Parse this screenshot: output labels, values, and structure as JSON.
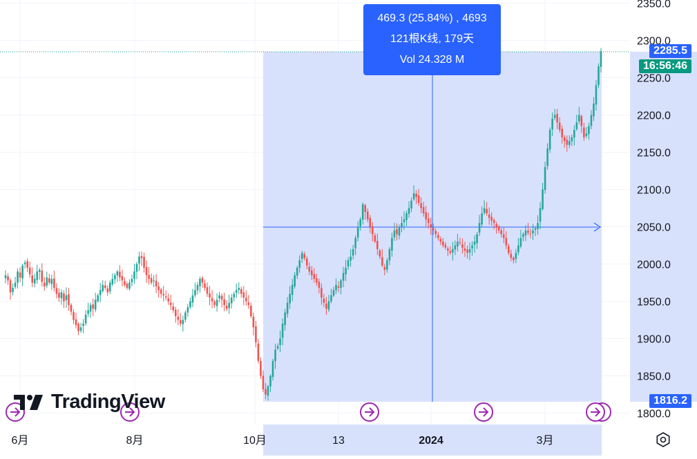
{
  "tooltip": {
    "line1": "469.3 (25.84%) , 4693",
    "line2": "121根K线, 179天",
    "line3": "Vol 24.328 M"
  },
  "price_tags": {
    "last_price": "2285.5",
    "countdown": "16:56:46",
    "range_start": "1816.2"
  },
  "logo": {
    "text": "TradingView"
  },
  "colors": {
    "up": "#26a69a",
    "down": "#ef5350",
    "range_fill": "#d1dcfb",
    "accent": "#2962ff",
    "marker": "#9c27b0",
    "last_price_tag": "#2962ff",
    "countdown_tag": "#089981"
  },
  "icons": [
    "replay-arrow-icon",
    "settings-gear-icon",
    "tradingview-logo-icon"
  ],
  "chart_data": {
    "type": "candlestick",
    "title": "",
    "y_axis": {
      "ticks": [
        "1800.0",
        "1850.0",
        "1900.0",
        "1950.0",
        "2000.0",
        "2050.0",
        "2100.0",
        "2150.0",
        "2200.0",
        "2250.0",
        "2300.0",
        "2350.0"
      ],
      "range": [
        1795,
        2355
      ],
      "position": "right"
    },
    "x_axis": {
      "ticks": [
        "6月",
        "8月",
        "10月",
        "13",
        "2024",
        "3月"
      ]
    },
    "grid": true,
    "crosshair_price": 2050,
    "measurement_range": {
      "start_price": 1816.2,
      "end_price": 2285.5,
      "bars": 121,
      "days": 179
    },
    "close_series": [
      1985,
      1978,
      1962,
      1968,
      1975,
      1990,
      1982,
      1998,
      2002,
      1995,
      1986,
      1975,
      1980,
      1990,
      1992,
      1976,
      1970,
      1982,
      1975,
      1980,
      1968,
      1960,
      1955,
      1962,
      1950,
      1958,
      1945,
      1936,
      1925,
      1918,
      1910,
      1915,
      1920,
      1932,
      1938,
      1945,
      1940,
      1952,
      1958,
      1965,
      1972,
      1968,
      1962,
      1975,
      1980,
      1985,
      1990,
      1982,
      1978,
      1972,
      1968,
      1975,
      1980,
      1990,
      2000,
      2010,
      2008,
      1995,
      1985,
      1980,
      1975,
      1978,
      1970,
      1965,
      1960,
      1958,
      1955,
      1950,
      1945,
      1938,
      1930,
      1925,
      1920,
      1925,
      1935,
      1942,
      1950,
      1958,
      1965,
      1972,
      1980,
      1975,
      1968,
      1960,
      1955,
      1950,
      1945,
      1952,
      1958,
      1952,
      1945,
      1940,
      1948,
      1955,
      1960,
      1965,
      1968,
      1960,
      1955,
      1950,
      1945,
      1930,
      1915,
      1895,
      1870,
      1850,
      1832,
      1825,
      1836,
      1850,
      1870,
      1885,
      1890,
      1900,
      1920,
      1935,
      1948,
      1960,
      1972,
      1985,
      1995,
      2005,
      2015,
      2008,
      1998,
      1990,
      1985,
      1980,
      1975,
      1968,
      1955,
      1948,
      1940,
      1950,
      1958,
      1965,
      1972,
      1968,
      1978,
      1988,
      1995,
      2005,
      2010,
      2020,
      2035,
      2050,
      2060,
      2080,
      2070,
      2060,
      2050,
      2040,
      2030,
      2020,
      2010,
      1998,
      1992,
      2005,
      2020,
      2035,
      2045,
      2040,
      2050,
      2055,
      2060,
      2068,
      2075,
      2085,
      2095,
      2090,
      2082,
      2075,
      2068,
      2060,
      2055,
      2050,
      2045,
      2040,
      2035,
      2030,
      2025,
      2022,
      2018,
      2015,
      2020,
      2025,
      2030,
      2028,
      2022,
      2018,
      2015,
      2020,
      2025,
      2030,
      2040,
      2055,
      2068,
      2075,
      2068,
      2062,
      2058,
      2055,
      2050,
      2045,
      2040,
      2035,
      2025,
      2015,
      2008,
      2005,
      2015,
      2025,
      2035,
      2040,
      2045,
      2042,
      2040,
      2045,
      2048,
      2055,
      2075,
      2100,
      2130,
      2155,
      2180,
      2195,
      2200,
      2190,
      2180,
      2170,
      2165,
      2160,
      2165,
      2170,
      2180,
      2190,
      2200,
      2185,
      2170,
      2175,
      2185,
      2200,
      2215,
      2240,
      2265,
      2285.5
    ]
  }
}
